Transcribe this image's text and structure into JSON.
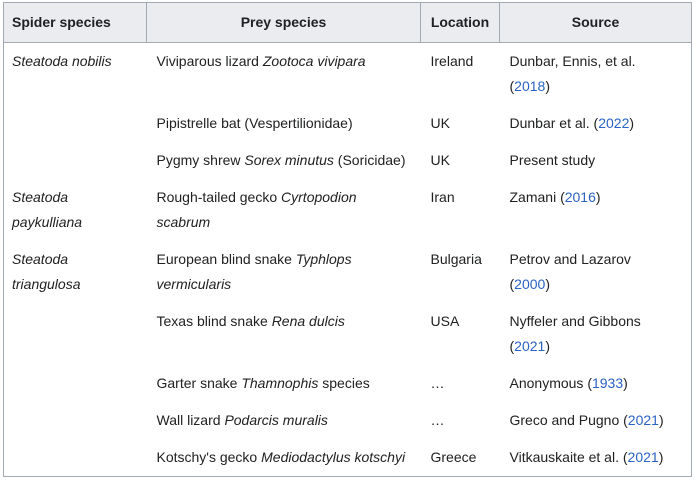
{
  "colors": {
    "header_bg": "#eaecf0",
    "border": "#a2a9b1",
    "link": "#2a62c4",
    "text": "#202122",
    "page_bg": "#ffffff"
  },
  "table": {
    "columns": [
      "Spider species",
      "Prey species",
      "Location",
      "Source"
    ],
    "rows": [
      {
        "spider": [
          {
            "t": "Steatoda nobilis",
            "i": true
          }
        ],
        "prey": [
          {
            "t": "Viviparous lizard "
          },
          {
            "t": "Zootoca vivipara",
            "i": true
          }
        ],
        "location": "Ireland",
        "source": [
          {
            "t": "Dunbar, Ennis, et al."
          },
          {
            "br": true
          },
          {
            "t": "("
          },
          {
            "t": "2018",
            "link": true
          },
          {
            "t": ")"
          }
        ]
      },
      {
        "spider": [],
        "prey": [
          {
            "t": "Pipistrelle bat (Vespertilionidae)"
          }
        ],
        "location": "UK",
        "source": [
          {
            "t": "Dunbar et al. ("
          },
          {
            "t": "2022",
            "link": true
          },
          {
            "t": ")"
          }
        ]
      },
      {
        "spider": [],
        "prey": [
          {
            "t": "Pygmy shrew "
          },
          {
            "t": "Sorex minutus",
            "i": true
          },
          {
            "t": " (Soricidae)"
          }
        ],
        "location": "UK",
        "source": [
          {
            "t": "Present study"
          }
        ]
      },
      {
        "spider": [
          {
            "t": "Steatoda",
            "i": true
          },
          {
            "br": true
          },
          {
            "t": "paykulliana",
            "i": true
          }
        ],
        "prey": [
          {
            "t": "Rough-tailed gecko "
          },
          {
            "t": "Cyrtopodion",
            "i": true
          },
          {
            "br": true
          },
          {
            "t": "scabrum",
            "i": true
          }
        ],
        "location": "Iran",
        "source": [
          {
            "t": "Zamani ("
          },
          {
            "t": "2016",
            "link": true
          },
          {
            "t": ")"
          }
        ]
      },
      {
        "spider": [
          {
            "t": "Steatoda",
            "i": true
          },
          {
            "br": true
          },
          {
            "t": "triangulosa",
            "i": true
          }
        ],
        "prey": [
          {
            "t": "European blind snake "
          },
          {
            "t": "Typhlops",
            "i": true
          },
          {
            "br": true
          },
          {
            "t": "vermicularis",
            "i": true
          }
        ],
        "location": "Bulgaria",
        "source": [
          {
            "t": "Petrov and Lazarov"
          },
          {
            "br": true
          },
          {
            "t": "("
          },
          {
            "t": "2000",
            "link": true
          },
          {
            "t": ")"
          }
        ]
      },
      {
        "spider": [],
        "prey": [
          {
            "t": "Texas blind snake "
          },
          {
            "t": "Rena dulcis",
            "i": true
          }
        ],
        "location": "USA",
        "source": [
          {
            "t": "Nyffeler and Gibbons"
          },
          {
            "br": true
          },
          {
            "t": "("
          },
          {
            "t": "2021",
            "link": true
          },
          {
            "t": ")"
          }
        ]
      },
      {
        "spider": [],
        "prey": [
          {
            "t": "Garter snake "
          },
          {
            "t": "Thamnophis",
            "i": true
          },
          {
            "t": " species"
          }
        ],
        "location": "…",
        "source": [
          {
            "t": "Anonymous ("
          },
          {
            "t": "1933",
            "link": true
          },
          {
            "t": ")"
          }
        ]
      },
      {
        "spider": [],
        "prey": [
          {
            "t": "Wall lizard "
          },
          {
            "t": "Podarcis muralis",
            "i": true
          }
        ],
        "location": "…",
        "source": [
          {
            "t": "Greco and Pugno ("
          },
          {
            "t": "2021",
            "link": true
          },
          {
            "t": ")"
          }
        ]
      },
      {
        "spider": [],
        "prey": [
          {
            "t": "Kotschy's gecko "
          },
          {
            "t": "Mediodactylus kotschyi",
            "i": true
          }
        ],
        "location": "Greece",
        "source": [
          {
            "t": "Vitkauskaite et al. ("
          },
          {
            "t": "2021",
            "link": true
          },
          {
            "t": ")"
          }
        ]
      }
    ]
  }
}
